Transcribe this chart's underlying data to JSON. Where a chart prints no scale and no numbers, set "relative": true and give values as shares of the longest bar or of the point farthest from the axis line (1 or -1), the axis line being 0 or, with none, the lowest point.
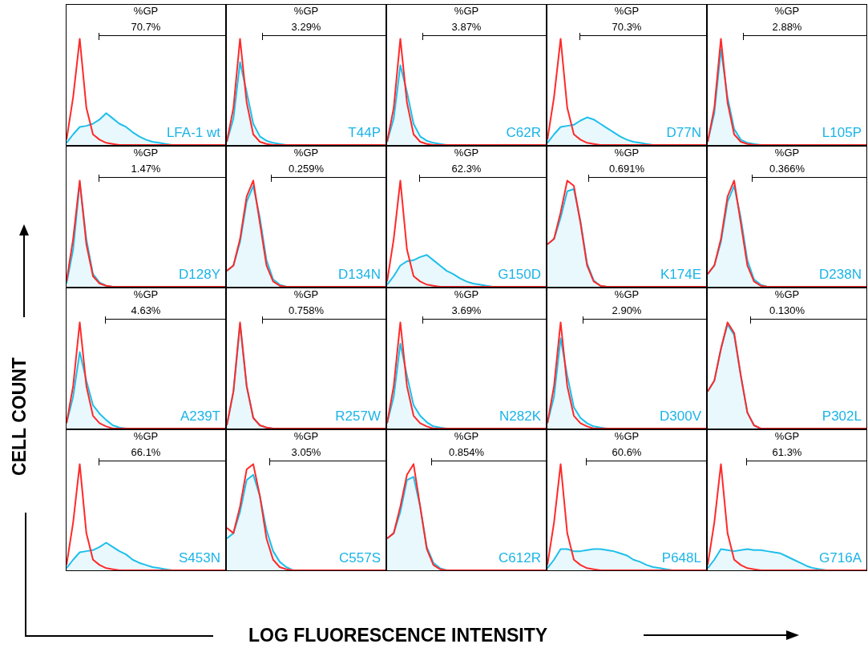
{
  "chart_data": [
    {
      "type": "area",
      "relative": true,
      "title": "LFA-1 wt",
      "annotations": [
        "%GP",
        "70.7%"
      ],
      "categories": [
        null,
        null,
        null,
        null,
        null,
        null,
        null,
        null,
        null,
        null,
        null,
        null,
        null,
        null,
        null,
        null,
        null,
        null,
        null,
        null,
        null,
        null,
        null,
        null,
        null
      ],
      "series": [
        {
          "type": "line",
          "color": "#ff2a2a",
          "values": [
            0.05,
            0.45,
            1.0,
            0.35,
            0.1,
            0.05,
            0.02,
            0.01,
            0,
            0,
            0,
            0,
            0,
            0,
            0,
            0,
            0,
            0,
            0,
            0,
            0,
            0,
            0,
            0,
            0
          ]
        },
        {
          "type": "area",
          "color": "#1ebfea",
          "values": [
            0.02,
            0.1,
            0.17,
            0.18,
            0.2,
            0.24,
            0.3,
            0.25,
            0.2,
            0.17,
            0.12,
            0.08,
            0.05,
            0.03,
            0.02,
            0.01,
            0,
            0,
            0,
            0,
            0,
            0,
            0,
            0,
            0
          ]
        }
      ]
    },
    {
      "type": "area",
      "relative": true,
      "title": "T44P",
      "annotations": [
        "%GP",
        "3.29%"
      ],
      "categories": [
        null,
        null,
        null,
        null,
        null,
        null,
        null,
        null,
        null,
        null,
        null,
        null,
        null,
        null,
        null,
        null,
        null,
        null,
        null,
        null,
        null,
        null,
        null,
        null,
        null
      ],
      "series": [
        {
          "type": "line",
          "color": "#ff2a2a",
          "values": [
            0.03,
            0.35,
            1.0,
            0.4,
            0.1,
            0.03,
            0.01,
            0,
            0,
            0,
            0,
            0,
            0,
            0,
            0,
            0,
            0,
            0,
            0,
            0,
            0,
            0,
            0,
            0,
            0
          ]
        },
        {
          "type": "area",
          "color": "#1ebfea",
          "values": [
            0.03,
            0.25,
            0.78,
            0.5,
            0.2,
            0.08,
            0.04,
            0.02,
            0.01,
            0,
            0,
            0,
            0,
            0,
            0,
            0,
            0,
            0,
            0,
            0,
            0,
            0,
            0,
            0,
            0
          ]
        }
      ]
    },
    {
      "type": "area",
      "relative": true,
      "title": "C62R",
      "annotations": [
        "%GP",
        "3.87%"
      ],
      "categories": [
        null,
        null,
        null,
        null,
        null,
        null,
        null,
        null,
        null,
        null,
        null,
        null,
        null,
        null,
        null,
        null,
        null,
        null,
        null,
        null,
        null,
        null,
        null,
        null,
        null
      ],
      "series": [
        {
          "type": "line",
          "color": "#ff2a2a",
          "values": [
            0.03,
            0.35,
            1.0,
            0.4,
            0.1,
            0.03,
            0.01,
            0,
            0,
            0,
            0,
            0,
            0,
            0,
            0,
            0,
            0,
            0,
            0,
            0,
            0,
            0,
            0,
            0,
            0
          ]
        },
        {
          "type": "area",
          "color": "#1ebfea",
          "values": [
            0.03,
            0.25,
            0.75,
            0.5,
            0.2,
            0.08,
            0.04,
            0.02,
            0.01,
            0,
            0,
            0,
            0,
            0,
            0,
            0,
            0,
            0,
            0,
            0,
            0,
            0,
            0,
            0,
            0
          ]
        }
      ]
    },
    {
      "type": "area",
      "relative": true,
      "title": "D77N",
      "annotations": [
        "%GP",
        "70.3%"
      ],
      "categories": [
        null,
        null,
        null,
        null,
        null,
        null,
        null,
        null,
        null,
        null,
        null,
        null,
        null,
        null,
        null,
        null,
        null,
        null,
        null,
        null,
        null,
        null,
        null,
        null,
        null
      ],
      "series": [
        {
          "type": "line",
          "color": "#ff2a2a",
          "values": [
            0.05,
            0.45,
            1.0,
            0.35,
            0.1,
            0.05,
            0.02,
            0.01,
            0,
            0,
            0,
            0,
            0,
            0,
            0,
            0,
            0,
            0,
            0,
            0,
            0,
            0,
            0,
            0,
            0
          ]
        },
        {
          "type": "area",
          "color": "#1ebfea",
          "values": [
            0.02,
            0.1,
            0.17,
            0.18,
            0.19,
            0.23,
            0.26,
            0.24,
            0.2,
            0.16,
            0.12,
            0.08,
            0.05,
            0.03,
            0.02,
            0.01,
            0,
            0,
            0,
            0,
            0,
            0,
            0,
            0,
            0
          ]
        }
      ]
    },
    {
      "type": "area",
      "relative": true,
      "title": "L105P",
      "annotations": [
        "%GP",
        "2.88%"
      ],
      "categories": [
        null,
        null,
        null,
        null,
        null,
        null,
        null,
        null,
        null,
        null,
        null,
        null,
        null,
        null,
        null,
        null,
        null,
        null,
        null,
        null,
        null,
        null,
        null,
        null,
        null
      ],
      "series": [
        {
          "type": "line",
          "color": "#ff2a2a",
          "values": [
            0.03,
            0.35,
            1.0,
            0.4,
            0.1,
            0.03,
            0.01,
            0,
            0,
            0,
            0,
            0,
            0,
            0,
            0,
            0,
            0,
            0,
            0,
            0,
            0,
            0,
            0,
            0,
            0
          ]
        },
        {
          "type": "area",
          "color": "#1ebfea",
          "values": [
            0.03,
            0.3,
            0.9,
            0.45,
            0.15,
            0.05,
            0.02,
            0.01,
            0,
            0,
            0,
            0,
            0,
            0,
            0,
            0,
            0,
            0,
            0,
            0,
            0,
            0,
            0,
            0,
            0
          ]
        }
      ]
    },
    {
      "type": "area",
      "relative": true,
      "title": "D128Y",
      "annotations": [
        "%GP",
        "1.47%"
      ],
      "categories": [
        null,
        null,
        null,
        null,
        null,
        null,
        null,
        null,
        null,
        null,
        null,
        null,
        null,
        null,
        null,
        null,
        null,
        null,
        null,
        null,
        null,
        null,
        null,
        null,
        null
      ],
      "series": [
        {
          "type": "line",
          "color": "#ff2a2a",
          "values": [
            0.05,
            0.45,
            1.0,
            0.4,
            0.1,
            0.03,
            0.01,
            0,
            0,
            0,
            0,
            0,
            0,
            0,
            0,
            0,
            0,
            0,
            0,
            0,
            0,
            0,
            0,
            0,
            0
          ]
        },
        {
          "type": "area",
          "color": "#1ebfea",
          "values": [
            0.03,
            0.35,
            0.98,
            0.45,
            0.12,
            0.04,
            0.01,
            0,
            0,
            0,
            0,
            0,
            0,
            0,
            0,
            0,
            0,
            0,
            0,
            0,
            0,
            0,
            0,
            0,
            0
          ]
        }
      ]
    },
    {
      "type": "area",
      "relative": true,
      "title": "D134N",
      "annotations": [
        "%GP",
        "0.259%"
      ],
      "categories": [
        null,
        null,
        null,
        null,
        null,
        null,
        null,
        null,
        null,
        null,
        null,
        null,
        null,
        null,
        null,
        null,
        null,
        null,
        null,
        null,
        null,
        null,
        null,
        null,
        null
      ],
      "series": [
        {
          "type": "line",
          "color": "#ff2a2a",
          "values": [
            0.15,
            0.2,
            0.45,
            0.85,
            1.0,
            0.6,
            0.2,
            0.05,
            0.01,
            0,
            0,
            0,
            0,
            0,
            0,
            0,
            0,
            0,
            0,
            0,
            0,
            0,
            0,
            0,
            0
          ]
        },
        {
          "type": "area",
          "color": "#1ebfea",
          "values": [
            0.15,
            0.2,
            0.42,
            0.8,
            0.95,
            0.65,
            0.25,
            0.07,
            0.02,
            0,
            0,
            0,
            0,
            0,
            0,
            0,
            0,
            0,
            0,
            0,
            0,
            0,
            0,
            0,
            0
          ]
        }
      ]
    },
    {
      "type": "area",
      "relative": true,
      "title": "G150D",
      "annotations": [
        "%GP",
        "62.3%"
      ],
      "categories": [
        null,
        null,
        null,
        null,
        null,
        null,
        null,
        null,
        null,
        null,
        null,
        null,
        null,
        null,
        null,
        null,
        null,
        null,
        null,
        null,
        null,
        null,
        null,
        null,
        null
      ],
      "series": [
        {
          "type": "line",
          "color": "#ff2a2a",
          "values": [
            0.05,
            0.45,
            1.0,
            0.35,
            0.1,
            0.05,
            0.02,
            0.01,
            0,
            0,
            0,
            0,
            0,
            0,
            0,
            0,
            0,
            0,
            0,
            0,
            0,
            0,
            0,
            0,
            0
          ]
        },
        {
          "type": "area",
          "color": "#1ebfea",
          "values": [
            0.02,
            0.1,
            0.2,
            0.24,
            0.25,
            0.28,
            0.3,
            0.25,
            0.2,
            0.15,
            0.12,
            0.08,
            0.05,
            0.03,
            0.02,
            0.01,
            0,
            0,
            0,
            0,
            0,
            0,
            0,
            0,
            0
          ]
        }
      ]
    },
    {
      "type": "area",
      "relative": true,
      "title": "K174E",
      "annotations": [
        "%GP",
        "0.691%"
      ],
      "categories": [
        null,
        null,
        null,
        null,
        null,
        null,
        null,
        null,
        null,
        null,
        null,
        null,
        null,
        null,
        null,
        null,
        null,
        null,
        null,
        null,
        null,
        null,
        null,
        null,
        null
      ],
      "series": [
        {
          "type": "line",
          "color": "#ff2a2a",
          "values": [
            0.4,
            0.45,
            0.7,
            1.0,
            0.95,
            0.6,
            0.2,
            0.05,
            0.01,
            0,
            0,
            0,
            0,
            0,
            0,
            0,
            0,
            0,
            0,
            0,
            0,
            0,
            0,
            0,
            0
          ]
        },
        {
          "type": "area",
          "color": "#1ebfea",
          "values": [
            0.4,
            0.45,
            0.65,
            0.9,
            0.92,
            0.62,
            0.22,
            0.06,
            0.01,
            0,
            0,
            0,
            0,
            0,
            0,
            0,
            0,
            0,
            0,
            0,
            0,
            0,
            0,
            0,
            0
          ]
        }
      ]
    },
    {
      "type": "area",
      "relative": true,
      "title": "D238N",
      "annotations": [
        "%GP",
        "0.366%"
      ],
      "categories": [
        null,
        null,
        null,
        null,
        null,
        null,
        null,
        null,
        null,
        null,
        null,
        null,
        null,
        null,
        null,
        null,
        null,
        null,
        null,
        null,
        null,
        null,
        null,
        null,
        null
      ],
      "series": [
        {
          "type": "line",
          "color": "#ff2a2a",
          "values": [
            0.12,
            0.2,
            0.45,
            0.85,
            1.0,
            0.6,
            0.2,
            0.05,
            0.01,
            0,
            0,
            0,
            0,
            0,
            0,
            0,
            0,
            0,
            0,
            0,
            0,
            0,
            0,
            0,
            0
          ]
        },
        {
          "type": "area",
          "color": "#1ebfea",
          "values": [
            0.12,
            0.2,
            0.42,
            0.8,
            0.95,
            0.65,
            0.25,
            0.07,
            0.02,
            0,
            0,
            0,
            0,
            0,
            0,
            0,
            0,
            0,
            0,
            0,
            0,
            0,
            0,
            0,
            0
          ]
        }
      ]
    },
    {
      "type": "area",
      "relative": true,
      "title": "A239T",
      "annotations": [
        "%GP",
        "4.63%"
      ],
      "categories": [
        null,
        null,
        null,
        null,
        null,
        null,
        null,
        null,
        null,
        null,
        null,
        null,
        null,
        null,
        null,
        null,
        null,
        null,
        null,
        null,
        null,
        null,
        null,
        null,
        null
      ],
      "series": [
        {
          "type": "line",
          "color": "#ff2a2a",
          "values": [
            0.05,
            0.4,
            1.0,
            0.4,
            0.12,
            0.05,
            0.02,
            0,
            0,
            0,
            0,
            0,
            0,
            0,
            0,
            0,
            0,
            0,
            0,
            0,
            0,
            0,
            0,
            0,
            0
          ]
        },
        {
          "type": "area",
          "color": "#1ebfea",
          "values": [
            0.05,
            0.3,
            0.72,
            0.45,
            0.22,
            0.14,
            0.08,
            0.03,
            0.01,
            0,
            0,
            0,
            0,
            0,
            0,
            0,
            0,
            0,
            0,
            0,
            0,
            0,
            0,
            0,
            0
          ]
        }
      ]
    },
    {
      "type": "area",
      "relative": true,
      "title": "R257W",
      "annotations": [
        "%GP",
        "0.758%"
      ],
      "categories": [
        null,
        null,
        null,
        null,
        null,
        null,
        null,
        null,
        null,
        null,
        null,
        null,
        null,
        null,
        null,
        null,
        null,
        null,
        null,
        null,
        null,
        null,
        null,
        null,
        null
      ],
      "series": [
        {
          "type": "line",
          "color": "#ff2a2a",
          "values": [
            0.03,
            0.35,
            1.0,
            0.4,
            0.1,
            0.03,
            0.01,
            0,
            0,
            0,
            0,
            0,
            0,
            0,
            0,
            0,
            0,
            0,
            0,
            0,
            0,
            0,
            0,
            0,
            0
          ]
        },
        {
          "type": "area",
          "color": "#1ebfea",
          "values": [
            0.03,
            0.35,
            0.98,
            0.4,
            0.1,
            0.03,
            0.01,
            0,
            0,
            0,
            0,
            0,
            0,
            0,
            0,
            0,
            0,
            0,
            0,
            0,
            0,
            0,
            0,
            0,
            0
          ]
        }
      ]
    },
    {
      "type": "area",
      "relative": true,
      "title": "N282K",
      "annotations": [
        "%GP",
        "3.69%"
      ],
      "categories": [
        null,
        null,
        null,
        null,
        null,
        null,
        null,
        null,
        null,
        null,
        null,
        null,
        null,
        null,
        null,
        null,
        null,
        null,
        null,
        null,
        null,
        null,
        null,
        null,
        null
      ],
      "series": [
        {
          "type": "line",
          "color": "#ff2a2a",
          "values": [
            0.05,
            0.4,
            1.0,
            0.4,
            0.12,
            0.05,
            0.02,
            0,
            0,
            0,
            0,
            0,
            0,
            0,
            0,
            0,
            0,
            0,
            0,
            0,
            0,
            0,
            0,
            0,
            0
          ]
        },
        {
          "type": "area",
          "color": "#1ebfea",
          "values": [
            0.05,
            0.3,
            0.8,
            0.5,
            0.22,
            0.12,
            0.06,
            0.02,
            0.01,
            0,
            0,
            0,
            0,
            0,
            0,
            0,
            0,
            0,
            0,
            0,
            0,
            0,
            0,
            0,
            0
          ]
        }
      ]
    },
    {
      "type": "area",
      "relative": true,
      "title": "D300V",
      "annotations": [
        "%GP",
        "2.90%"
      ],
      "categories": [
        null,
        null,
        null,
        null,
        null,
        null,
        null,
        null,
        null,
        null,
        null,
        null,
        null,
        null,
        null,
        null,
        null,
        null,
        null,
        null,
        null,
        null,
        null,
        null,
        null
      ],
      "series": [
        {
          "type": "line",
          "color": "#ff2a2a",
          "values": [
            0.05,
            0.4,
            1.0,
            0.4,
            0.12,
            0.05,
            0.02,
            0,
            0,
            0,
            0,
            0,
            0,
            0,
            0,
            0,
            0,
            0,
            0,
            0,
            0,
            0,
            0,
            0,
            0
          ]
        },
        {
          "type": "area",
          "color": "#1ebfea",
          "values": [
            0.05,
            0.3,
            0.85,
            0.5,
            0.2,
            0.1,
            0.05,
            0.02,
            0.01,
            0,
            0,
            0,
            0,
            0,
            0,
            0,
            0,
            0,
            0,
            0,
            0,
            0,
            0,
            0,
            0
          ]
        }
      ]
    },
    {
      "type": "area",
      "relative": true,
      "title": "P302L",
      "annotations": [
        "%GP",
        "0.130%"
      ],
      "categories": [
        null,
        null,
        null,
        null,
        null,
        null,
        null,
        null,
        null,
        null,
        null,
        null,
        null,
        null,
        null,
        null,
        null,
        null,
        null,
        null,
        null,
        null,
        null,
        null,
        null
      ],
      "series": [
        {
          "type": "line",
          "color": "#ff2a2a",
          "values": [
            0.35,
            0.45,
            0.75,
            1.0,
            0.9,
            0.5,
            0.15,
            0.03,
            0,
            0,
            0,
            0,
            0,
            0,
            0,
            0,
            0,
            0,
            0,
            0,
            0,
            0,
            0,
            0,
            0
          ]
        },
        {
          "type": "area",
          "color": "#1ebfea",
          "values": [
            0.35,
            0.45,
            0.75,
            0.98,
            0.88,
            0.5,
            0.15,
            0.03,
            0,
            0,
            0,
            0,
            0,
            0,
            0,
            0,
            0,
            0,
            0,
            0,
            0,
            0,
            0,
            0,
            0
          ]
        }
      ]
    },
    {
      "type": "area",
      "relative": true,
      "title": "S453N",
      "annotations": [
        "%GP",
        "66.1%"
      ],
      "categories": [
        null,
        null,
        null,
        null,
        null,
        null,
        null,
        null,
        null,
        null,
        null,
        null,
        null,
        null,
        null,
        null,
        null,
        null,
        null,
        null,
        null,
        null,
        null,
        null,
        null
      ],
      "series": [
        {
          "type": "line",
          "color": "#ff2a2a",
          "values": [
            0.05,
            0.45,
            1.0,
            0.35,
            0.1,
            0.05,
            0.02,
            0.01,
            0,
            0,
            0,
            0,
            0,
            0,
            0,
            0,
            0,
            0,
            0,
            0,
            0,
            0,
            0,
            0,
            0
          ]
        },
        {
          "type": "area",
          "color": "#1ebfea",
          "values": [
            0.02,
            0.1,
            0.17,
            0.18,
            0.19,
            0.22,
            0.26,
            0.22,
            0.18,
            0.15,
            0.1,
            0.07,
            0.05,
            0.03,
            0.02,
            0.01,
            0,
            0,
            0,
            0,
            0,
            0,
            0,
            0,
            0
          ]
        }
      ]
    },
    {
      "type": "area",
      "relative": true,
      "title": "C557S",
      "annotations": [
        "%GP",
        "3.05%"
      ],
      "categories": [
        null,
        null,
        null,
        null,
        null,
        null,
        null,
        null,
        null,
        null,
        null,
        null,
        null,
        null,
        null,
        null,
        null,
        null,
        null,
        null,
        null,
        null,
        null,
        null,
        null
      ],
      "series": [
        {
          "type": "line",
          "color": "#ff2a2a",
          "values": [
            0.4,
            0.35,
            0.6,
            0.95,
            1.0,
            0.7,
            0.3,
            0.1,
            0.03,
            0.01,
            0,
            0,
            0,
            0,
            0,
            0,
            0,
            0,
            0,
            0,
            0,
            0,
            0,
            0,
            0
          ]
        },
        {
          "type": "area",
          "color": "#1ebfea",
          "values": [
            0.3,
            0.35,
            0.55,
            0.85,
            0.9,
            0.7,
            0.38,
            0.18,
            0.08,
            0.03,
            0,
            0,
            0,
            0,
            0,
            0,
            0,
            0,
            0,
            0,
            0,
            0,
            0,
            0,
            0
          ]
        }
      ]
    },
    {
      "type": "area",
      "relative": true,
      "title": "C612R",
      "annotations": [
        "%GP",
        "0.854%"
      ],
      "categories": [
        null,
        null,
        null,
        null,
        null,
        null,
        null,
        null,
        null,
        null,
        null,
        null,
        null,
        null,
        null,
        null,
        null,
        null,
        null,
        null,
        null,
        null,
        null,
        null,
        null
      ],
      "series": [
        {
          "type": "line",
          "color": "#ff2a2a",
          "values": [
            0.3,
            0.35,
            0.6,
            0.9,
            1.0,
            0.6,
            0.2,
            0.05,
            0.01,
            0,
            0,
            0,
            0,
            0,
            0,
            0,
            0,
            0,
            0,
            0,
            0,
            0,
            0,
            0,
            0
          ]
        },
        {
          "type": "area",
          "color": "#1ebfea",
          "values": [
            0.3,
            0.35,
            0.55,
            0.85,
            0.88,
            0.6,
            0.22,
            0.07,
            0.02,
            0,
            0,
            0,
            0,
            0,
            0,
            0,
            0,
            0,
            0,
            0,
            0,
            0,
            0,
            0,
            0
          ]
        }
      ]
    },
    {
      "type": "area",
      "relative": true,
      "title": "P648L",
      "annotations": [
        "%GP",
        "60.6%"
      ],
      "categories": [
        null,
        null,
        null,
        null,
        null,
        null,
        null,
        null,
        null,
        null,
        null,
        null,
        null,
        null,
        null,
        null,
        null,
        null,
        null,
        null,
        null,
        null,
        null,
        null,
        null
      ],
      "series": [
        {
          "type": "line",
          "color": "#ff2a2a",
          "values": [
            0.05,
            0.45,
            1.0,
            0.35,
            0.1,
            0.05,
            0.02,
            0.01,
            0,
            0,
            0,
            0,
            0,
            0,
            0,
            0,
            0,
            0,
            0,
            0,
            0,
            0,
            0,
            0,
            0
          ]
        },
        {
          "type": "area",
          "color": "#1ebfea",
          "values": [
            0.02,
            0.1,
            0.2,
            0.2,
            0.18,
            0.18,
            0.19,
            0.2,
            0.2,
            0.19,
            0.18,
            0.16,
            0.14,
            0.1,
            0.08,
            0.05,
            0.03,
            0.02,
            0.01,
            0,
            0,
            0,
            0,
            0,
            0
          ]
        }
      ]
    },
    {
      "type": "area",
      "relative": true,
      "title": "G716A",
      "annotations": [
        "%GP",
        "61.3%"
      ],
      "categories": [
        null,
        null,
        null,
        null,
        null,
        null,
        null,
        null,
        null,
        null,
        null,
        null,
        null,
        null,
        null,
        null,
        null,
        null,
        null,
        null,
        null,
        null,
        null,
        null,
        null
      ],
      "series": [
        {
          "type": "line",
          "color": "#ff2a2a",
          "values": [
            0.05,
            0.45,
            1.0,
            0.35,
            0.1,
            0.05,
            0.02,
            0.01,
            0,
            0,
            0,
            0,
            0,
            0,
            0,
            0,
            0,
            0,
            0,
            0,
            0,
            0,
            0,
            0,
            0
          ]
        },
        {
          "type": "area",
          "color": "#1ebfea",
          "values": [
            0.02,
            0.1,
            0.2,
            0.19,
            0.18,
            0.19,
            0.2,
            0.19,
            0.19,
            0.18,
            0.17,
            0.16,
            0.13,
            0.1,
            0.07,
            0.04,
            0.02,
            0.01,
            0,
            0,
            0,
            0,
            0,
            0,
            0
          ]
        }
      ]
    },
    {
      "type": "other",
      "xlabel": "LOG FLUORESCENCE INTENSITY",
      "ylabel": "CELL COUNT"
    }
  ]
}
